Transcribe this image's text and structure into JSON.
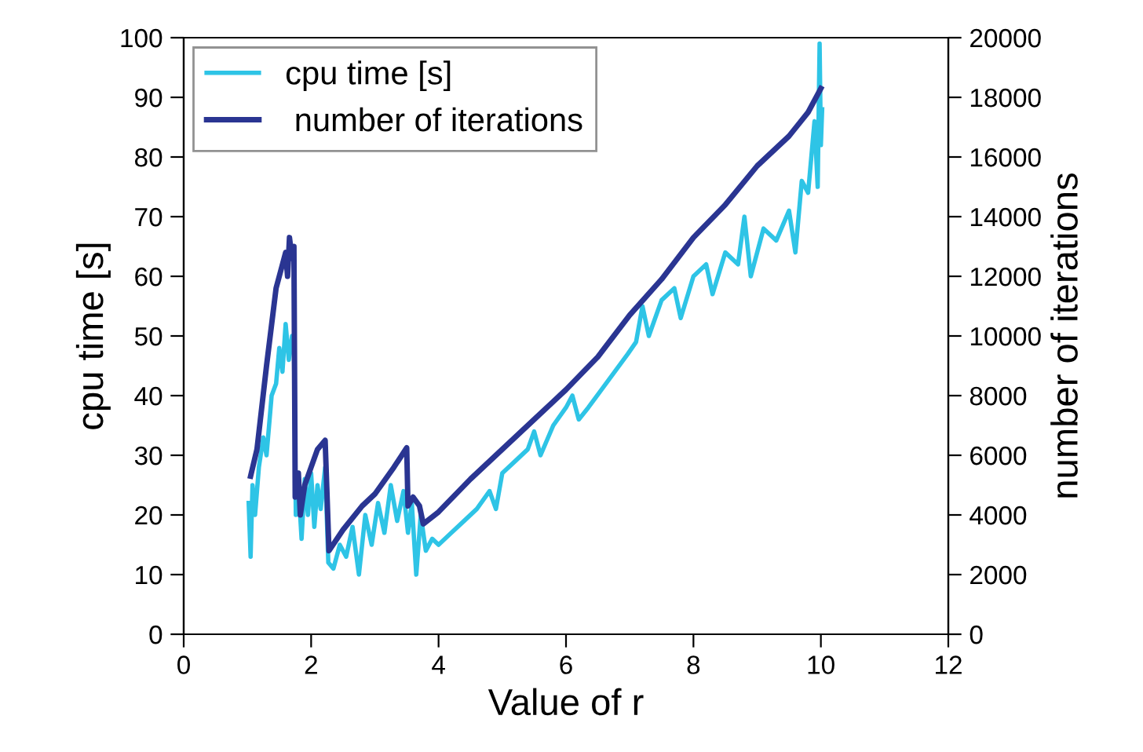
{
  "chart_data": {
    "type": "line",
    "xlabel": "Value of r",
    "ylabel": "cpu time [s]",
    "y2label": "number of iterations",
    "xlim": [
      0,
      12
    ],
    "xticks": [
      0,
      2,
      4,
      6,
      8,
      10,
      12
    ],
    "ylim": [
      0,
      100
    ],
    "yticks": [
      0,
      10,
      20,
      30,
      40,
      50,
      60,
      70,
      80,
      90,
      100
    ],
    "y2lim": [
      0,
      20000
    ],
    "y2ticks": [
      0,
      2000,
      4000,
      6000,
      8000,
      10000,
      12000,
      14000,
      16000,
      18000,
      20000
    ],
    "legend": "top left",
    "grid": false,
    "marker": "none",
    "line_style": "solid",
    "series": [
      {
        "name": "cpu time [s]",
        "color": "#2ec4e6",
        "x": [
          1.02,
          1.05,
          1.08,
          1.12,
          1.18,
          1.25,
          1.3,
          1.38,
          1.45,
          1.5,
          1.55,
          1.6,
          1.65,
          1.7,
          1.73,
          1.76,
          1.8,
          1.85,
          1.9,
          1.95,
          2.0,
          2.05,
          2.1,
          2.15,
          2.22,
          2.27,
          2.35,
          2.45,
          2.55,
          2.65,
          2.75,
          2.85,
          2.95,
          3.05,
          3.15,
          3.25,
          3.35,
          3.45,
          3.52,
          3.58,
          3.65,
          3.72,
          3.8,
          3.9,
          4.0,
          4.2,
          4.4,
          4.6,
          4.8,
          4.9,
          5.0,
          5.2,
          5.4,
          5.5,
          5.6,
          5.8,
          6.0,
          6.1,
          6.2,
          6.35,
          6.97,
          7.1,
          7.2,
          7.3,
          7.5,
          7.7,
          7.8,
          8.0,
          8.2,
          8.3,
          8.5,
          8.7,
          8.8,
          8.9,
          9.1,
          9.3,
          9.5,
          9.6,
          9.7,
          9.8,
          9.9,
          9.95,
          9.98,
          10.0,
          10.02
        ],
        "values": [
          22,
          13,
          25,
          20,
          28,
          33,
          30,
          40,
          42,
          48,
          44,
          52,
          46,
          50,
          48,
          20,
          25,
          16,
          26,
          20,
          27,
          18,
          25,
          21,
          28,
          12,
          11,
          15,
          13,
          18,
          10,
          20,
          15,
          22,
          17,
          25,
          19,
          24,
          17,
          22,
          10,
          20,
          14,
          16,
          15,
          17,
          19,
          21,
          24,
          21,
          27,
          29,
          31,
          34,
          30,
          35,
          38,
          40,
          36,
          38,
          47,
          49,
          55,
          50,
          56,
          58,
          53,
          60,
          62,
          57,
          64,
          62,
          70,
          60,
          68,
          66,
          71,
          64,
          76,
          74,
          86,
          75,
          99,
          82,
          88
        ]
      },
      {
        "name": " number of iterations",
        "color": "#2a3592",
        "axis": "y2",
        "x": [
          1.05,
          1.15,
          1.3,
          1.45,
          1.55,
          1.6,
          1.63,
          1.66,
          1.7,
          1.73,
          1.75,
          1.8,
          1.83,
          1.9,
          2.0,
          2.1,
          2.22,
          2.28,
          2.5,
          2.8,
          3.0,
          3.3,
          3.5,
          3.52,
          3.6,
          3.7,
          3.76,
          4.0,
          4.5,
          5.0,
          5.5,
          6.0,
          6.5,
          7.0,
          7.5,
          8.0,
          8.5,
          9.0,
          9.5,
          9.8,
          10.0
        ],
        "values": [
          5300,
          6200,
          9000,
          11600,
          12400,
          12800,
          12000,
          13300,
          12600,
          13000,
          4600,
          5400,
          4000,
          5000,
          5600,
          6200,
          6500,
          2800,
          3500,
          4300,
          4700,
          5600,
          6250,
          4300,
          4600,
          4300,
          3700,
          4100,
          5200,
          6200,
          7200,
          8200,
          9300,
          10700,
          11900,
          13300,
          14400,
          15700,
          16700,
          17500,
          18300
        ]
      }
    ]
  }
}
